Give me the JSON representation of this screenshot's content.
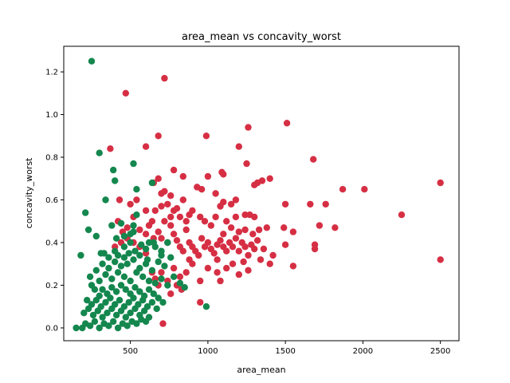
{
  "chart_data": {
    "type": "scatter",
    "title": "area_mean vs concavity_worst",
    "xlabel": "area_mean",
    "ylabel": "concavity_worst",
    "xlim": [
      70,
      2620
    ],
    "ylim": [
      -0.06,
      1.32
    ],
    "xticks": [
      500,
      1000,
      1500,
      2000,
      2500
    ],
    "yticks": [
      0.0,
      0.2,
      0.4,
      0.6,
      0.8,
      1.0,
      1.2
    ],
    "xtick_labels": [
      "500",
      "1000",
      "1500",
      "2000",
      "2500"
    ],
    "ytick_labels": [
      "0.0",
      "0.2",
      "0.4",
      "0.6",
      "0.8",
      "1.0",
      "1.2"
    ],
    "grid": false,
    "legend": "none",
    "series": [
      {
        "color": "#d62f44",
        "points": [
          [
            470,
            1.1
          ],
          [
            720,
            1.17
          ],
          [
            1510,
            0.96
          ],
          [
            1260,
            0.94
          ],
          [
            990,
            0.9
          ],
          [
            680,
            0.9
          ],
          [
            600,
            0.85
          ],
          [
            1200,
            0.85
          ],
          [
            370,
            0.84
          ],
          [
            1680,
            0.79
          ],
          [
            1250,
            0.77
          ],
          [
            780,
            0.74
          ],
          [
            680,
            0.7
          ],
          [
            1090,
            0.73
          ],
          [
            1000,
            0.71
          ],
          [
            1100,
            0.72
          ],
          [
            840,
            0.71
          ],
          [
            1400,
            0.7
          ],
          [
            1350,
            0.69
          ],
          [
            1320,
            0.68
          ],
          [
            2500,
            0.68
          ],
          [
            1300,
            0.67
          ],
          [
            930,
            0.66
          ],
          [
            960,
            0.65
          ],
          [
            1870,
            0.65
          ],
          [
            2010,
            0.65
          ],
          [
            650,
            0.68
          ],
          [
            700,
            0.63
          ],
          [
            760,
            0.62
          ],
          [
            720,
            0.64
          ],
          [
            1050,
            0.63
          ],
          [
            1180,
            0.6
          ],
          [
            1100,
            0.59
          ],
          [
            1150,
            0.58
          ],
          [
            1080,
            0.57
          ],
          [
            1500,
            0.58
          ],
          [
            1660,
            0.58
          ],
          [
            1760,
            0.58
          ],
          [
            430,
            0.6
          ],
          [
            500,
            0.58
          ],
          [
            540,
            0.6
          ],
          [
            600,
            0.55
          ],
          [
            640,
            0.5
          ],
          [
            660,
            0.55
          ],
          [
            700,
            0.57
          ],
          [
            740,
            0.58
          ],
          [
            780,
            0.55
          ],
          [
            820,
            0.52
          ],
          [
            860,
            0.5
          ],
          [
            900,
            0.55
          ],
          [
            950,
            0.52
          ],
          [
            980,
            0.5
          ],
          [
            1050,
            0.52
          ],
          [
            1120,
            0.5
          ],
          [
            1180,
            0.52
          ],
          [
            1240,
            0.53
          ],
          [
            1270,
            0.53
          ],
          [
            1300,
            0.52
          ],
          [
            1150,
            0.47
          ],
          [
            1200,
            0.45
          ],
          [
            1240,
            0.46
          ],
          [
            1290,
            0.44
          ],
          [
            1330,
            0.46
          ],
          [
            1380,
            0.47
          ],
          [
            1490,
            0.47
          ],
          [
            1550,
            0.45
          ],
          [
            1720,
            0.48
          ],
          [
            1820,
            0.47
          ],
          [
            2250,
            0.53
          ],
          [
            420,
            0.5
          ],
          [
            450,
            0.45
          ],
          [
            480,
            0.47
          ],
          [
            520,
            0.52
          ],
          [
            560,
            0.46
          ],
          [
            600,
            0.44
          ],
          [
            620,
            0.48
          ],
          [
            650,
            0.42
          ],
          [
            680,
            0.45
          ],
          [
            700,
            0.42
          ],
          [
            740,
            0.4
          ],
          [
            760,
            0.48
          ],
          [
            780,
            0.44
          ],
          [
            800,
            0.41
          ],
          [
            820,
            0.38
          ],
          [
            840,
            0.36
          ],
          [
            860,
            0.46
          ],
          [
            880,
            0.4
          ],
          [
            900,
            0.38
          ],
          [
            920,
            0.36
          ],
          [
            940,
            0.34
          ],
          [
            960,
            0.42
          ],
          [
            980,
            0.38
          ],
          [
            1000,
            0.4
          ],
          [
            1020,
            0.37
          ],
          [
            1040,
            0.35
          ],
          [
            1060,
            0.39
          ],
          [
            1080,
            0.41
          ],
          [
            1100,
            0.38
          ],
          [
            1120,
            0.36
          ],
          [
            1140,
            0.4
          ],
          [
            1160,
            0.38
          ],
          [
            1180,
            0.42
          ],
          [
            1200,
            0.36
          ],
          [
            1220,
            0.4
          ],
          [
            1240,
            0.38
          ],
          [
            1260,
            0.34
          ],
          [
            1280,
            0.39
          ],
          [
            1300,
            0.37
          ],
          [
            1320,
            0.41
          ],
          [
            1360,
            0.37
          ],
          [
            1420,
            0.34
          ],
          [
            1500,
            0.39
          ],
          [
            1690,
            0.39
          ],
          [
            1690,
            0.37
          ],
          [
            2500,
            0.32
          ],
          [
            1550,
            0.29
          ],
          [
            1260,
            0.27
          ],
          [
            1200,
            0.25
          ],
          [
            1120,
            0.28
          ],
          [
            1080,
            0.22
          ],
          [
            1000,
            0.28
          ],
          [
            950,
            0.22
          ],
          [
            900,
            0.3
          ],
          [
            860,
            0.26
          ],
          [
            820,
            0.24
          ],
          [
            780,
            0.28
          ],
          [
            740,
            0.22
          ],
          [
            700,
            0.26
          ],
          [
            680,
            0.2
          ],
          [
            660,
            0.23
          ],
          [
            640,
            0.26
          ],
          [
            950,
            0.12
          ],
          [
            710,
            0.02
          ],
          [
            800,
            0.2
          ],
          [
            830,
            0.18
          ],
          [
            760,
            0.16
          ],
          [
            1060,
            0.32
          ],
          [
            1160,
            0.3
          ],
          [
            1230,
            0.31
          ],
          [
            1340,
            0.32
          ],
          [
            1400,
            0.3
          ],
          [
            1060,
            0.26
          ],
          [
            880,
            0.32
          ],
          [
            600,
            0.35
          ],
          [
            560,
            0.38
          ],
          [
            520,
            0.4
          ],
          [
            480,
            0.42
          ],
          [
            440,
            0.4
          ],
          [
            400,
            0.38
          ],
          [
            720,
            0.5
          ],
          [
            760,
            0.52
          ],
          [
            800,
            0.56
          ],
          [
            840,
            0.6
          ],
          [
            880,
            0.53
          ],
          [
            1020,
            0.48
          ],
          [
            1100,
            0.44
          ]
        ]
      },
      {
        "color": "#14874e",
        "points": [
          [
            250,
            1.25
          ],
          [
            300,
            0.82
          ],
          [
            520,
            0.77
          ],
          [
            390,
            0.74
          ],
          [
            640,
            0.68
          ],
          [
            400,
            0.69
          ],
          [
            540,
            0.65
          ],
          [
            340,
            0.6
          ],
          [
            210,
            0.54
          ],
          [
            540,
            0.53
          ],
          [
            440,
            0.49
          ],
          [
            520,
            0.48
          ],
          [
            380,
            0.48
          ],
          [
            230,
            0.46
          ],
          [
            520,
            0.45
          ],
          [
            280,
            0.43
          ],
          [
            180,
            0.34
          ],
          [
            310,
            0.35
          ],
          [
            400,
            0.36
          ],
          [
            460,
            0.38
          ],
          [
            500,
            0.4
          ],
          [
            560,
            0.34
          ],
          [
            600,
            0.37
          ],
          [
            650,
            0.4
          ],
          [
            700,
            0.36
          ],
          [
            740,
            0.4
          ],
          [
            760,
            0.33
          ],
          [
            320,
            0.3
          ],
          [
            360,
            0.28
          ],
          [
            400,
            0.31
          ],
          [
            440,
            0.29
          ],
          [
            480,
            0.3
          ],
          [
            520,
            0.32
          ],
          [
            560,
            0.28
          ],
          [
            600,
            0.3
          ],
          [
            640,
            0.27
          ],
          [
            680,
            0.31
          ],
          [
            720,
            0.29
          ],
          [
            780,
            0.24
          ],
          [
            820,
            0.21
          ],
          [
            850,
            0.19
          ],
          [
            990,
            0.1
          ],
          [
            240,
            0.24
          ],
          [
            280,
            0.27
          ],
          [
            300,
            0.22
          ],
          [
            340,
            0.25
          ],
          [
            380,
            0.23
          ],
          [
            420,
            0.26
          ],
          [
            460,
            0.24
          ],
          [
            500,
            0.22
          ],
          [
            540,
            0.26
          ],
          [
            580,
            0.24
          ],
          [
            620,
            0.22
          ],
          [
            660,
            0.21
          ],
          [
            700,
            0.23
          ],
          [
            740,
            0.2
          ],
          [
            250,
            0.2
          ],
          [
            270,
            0.18
          ],
          [
            300,
            0.15
          ],
          [
            320,
            0.18
          ],
          [
            350,
            0.16
          ],
          [
            380,
            0.19
          ],
          [
            410,
            0.17
          ],
          [
            440,
            0.2
          ],
          [
            470,
            0.18
          ],
          [
            500,
            0.16
          ],
          [
            530,
            0.19
          ],
          [
            560,
            0.17
          ],
          [
            590,
            0.15
          ],
          [
            620,
            0.18
          ],
          [
            650,
            0.16
          ],
          [
            680,
            0.14
          ],
          [
            710,
            0.12
          ],
          [
            220,
            0.13
          ],
          [
            250,
            0.11
          ],
          [
            280,
            0.13
          ],
          [
            310,
            0.1
          ],
          [
            340,
            0.12
          ],
          [
            370,
            0.14
          ],
          [
            400,
            0.11
          ],
          [
            430,
            0.13
          ],
          [
            460,
            0.1
          ],
          [
            490,
            0.12
          ],
          [
            520,
            0.14
          ],
          [
            550,
            0.11
          ],
          [
            580,
            0.13
          ],
          [
            610,
            0.1
          ],
          [
            640,
            0.12
          ],
          [
            670,
            0.09
          ],
          [
            200,
            0.07
          ],
          [
            230,
            0.09
          ],
          [
            260,
            0.06
          ],
          [
            290,
            0.08
          ],
          [
            320,
            0.05
          ],
          [
            350,
            0.07
          ],
          [
            380,
            0.09
          ],
          [
            410,
            0.06
          ],
          [
            440,
            0.08
          ],
          [
            470,
            0.05
          ],
          [
            500,
            0.07
          ],
          [
            530,
            0.09
          ],
          [
            560,
            0.06
          ],
          [
            590,
            0.08
          ],
          [
            620,
            0.05
          ],
          [
            150,
            0.0
          ],
          [
            190,
            0.0
          ],
          [
            210,
            0.02
          ],
          [
            240,
            0.01
          ],
          [
            270,
            0.03
          ],
          [
            300,
            0.0
          ],
          [
            330,
            0.02
          ],
          [
            360,
            0.01
          ],
          [
            390,
            0.03
          ],
          [
            420,
            0.0
          ],
          [
            450,
            0.02
          ],
          [
            480,
            0.01
          ],
          [
            510,
            0.03
          ],
          [
            540,
            0.02
          ],
          [
            570,
            0.04
          ],
          [
            600,
            0.03
          ],
          [
            330,
            0.35
          ],
          [
            360,
            0.33
          ],
          [
            420,
            0.34
          ],
          [
            460,
            0.33
          ],
          [
            490,
            0.35
          ],
          [
            530,
            0.36
          ],
          [
            570,
            0.39
          ],
          [
            610,
            0.32
          ],
          [
            620,
            0.4
          ],
          [
            660,
            0.38
          ],
          [
            700,
            0.34
          ],
          [
            410,
            0.42
          ],
          [
            460,
            0.43
          ],
          [
            500,
            0.44
          ]
        ]
      }
    ]
  }
}
